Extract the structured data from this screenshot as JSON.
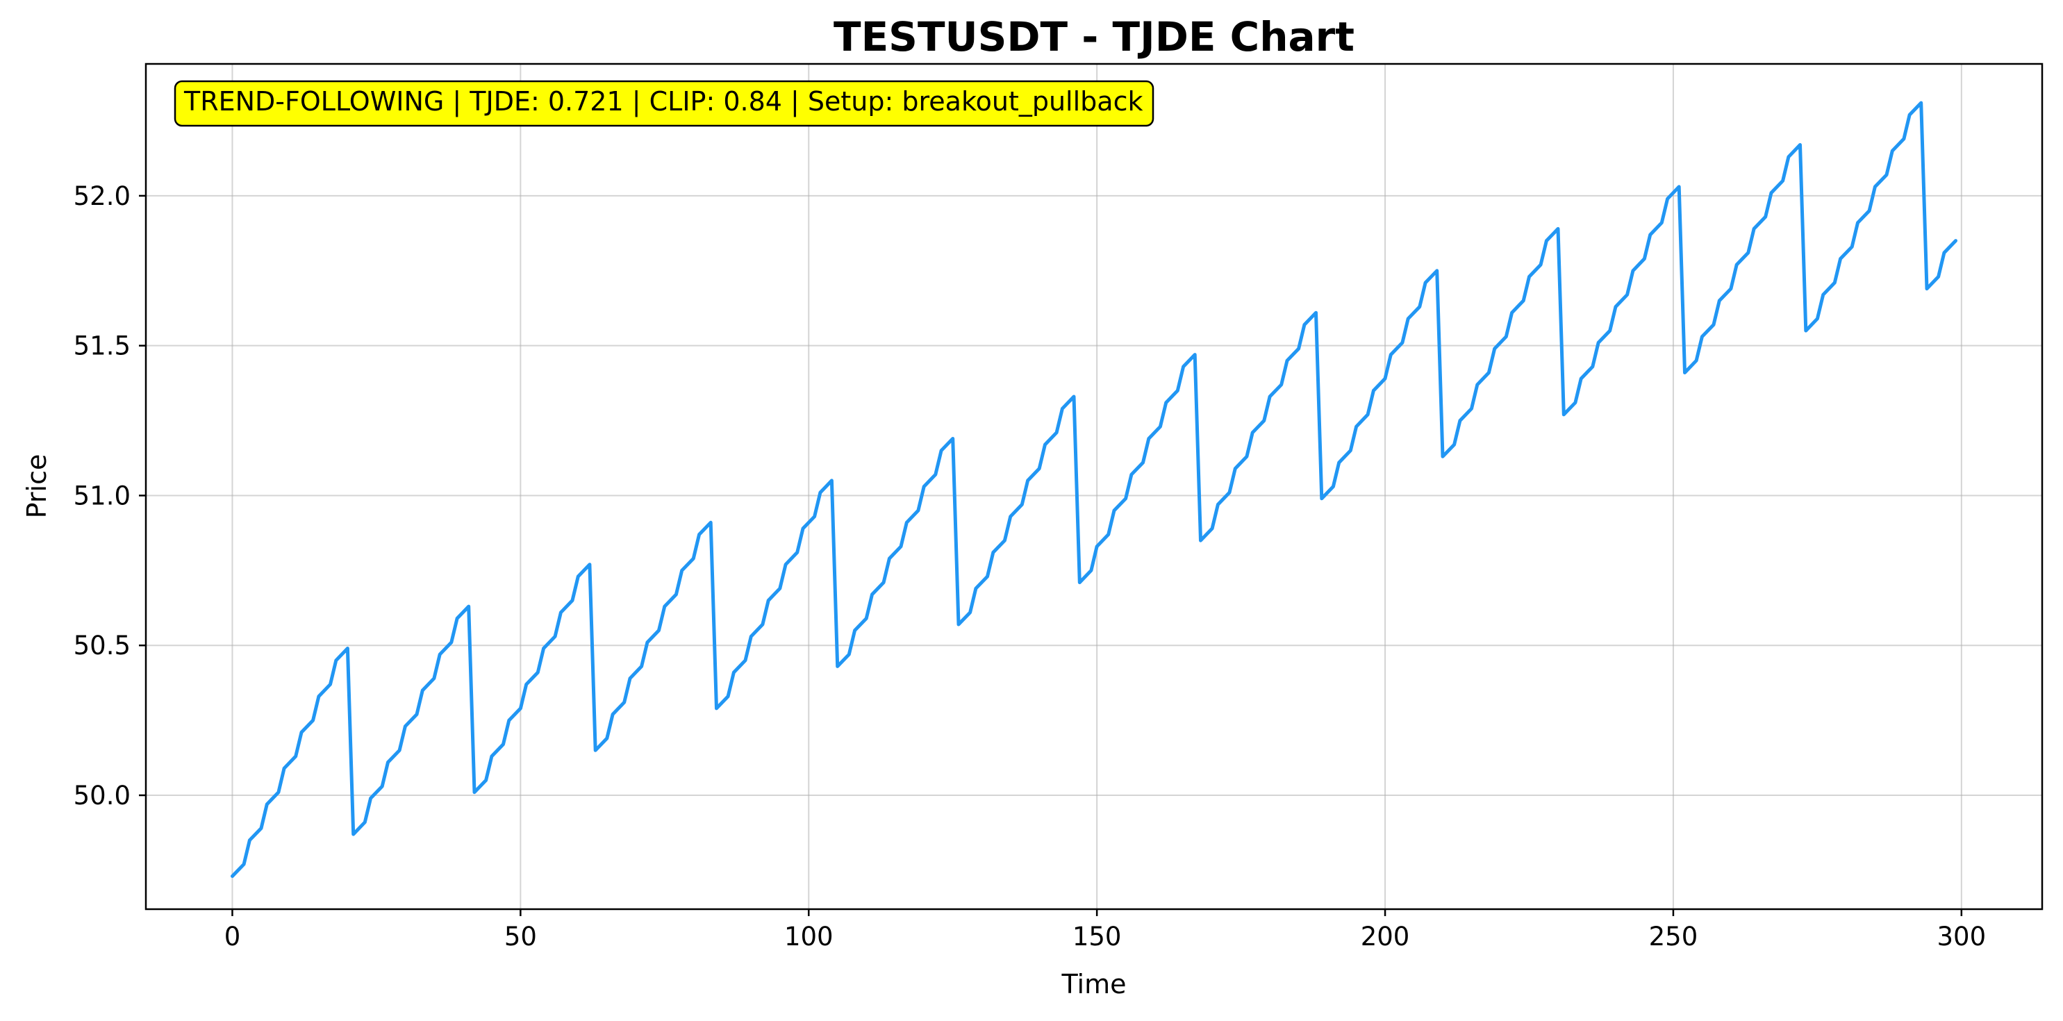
{
  "chart_data": {
    "type": "line",
    "title": "TESTUSDT - TJDE Chart",
    "xlabel": "Time",
    "ylabel": "Price",
    "xlim": [
      -15,
      314
    ],
    "ylim": [
      49.62,
      52.44
    ],
    "xticks": [
      0,
      50,
      100,
      150,
      200,
      250,
      300
    ],
    "yticks": [
      50.0,
      50.5,
      51.0,
      51.5,
      52.0
    ],
    "xtick_labels": [
      "0",
      "50",
      "100",
      "150",
      "200",
      "250",
      "300"
    ],
    "ytick_labels": [
      "50.0",
      "50.5",
      "51.0",
      "51.5",
      "52.0"
    ],
    "grid": true,
    "annotation": "TREND-FOLLOWING | TJDE: 0.721 | CLIP: 0.84 | Setup: breakout_pullback",
    "annotation_color": "#ffff00",
    "series": [
      {
        "color": "#2196f3",
        "x": [
          0,
          2,
          3,
          5,
          6,
          8,
          9,
          11,
          12,
          14,
          15,
          17,
          18,
          20,
          21,
          23,
          24,
          26,
          27,
          29,
          30,
          32,
          33,
          35,
          36,
          38,
          39,
          41,
          42,
          44,
          45,
          47,
          48,
          50,
          51,
          53,
          54,
          56,
          57,
          59,
          60,
          62,
          63,
          65,
          66,
          68,
          69,
          71,
          72,
          74,
          75,
          77,
          78,
          80,
          81,
          83,
          84,
          86,
          87,
          89,
          90,
          92,
          93,
          95,
          96,
          98,
          99,
          101,
          102,
          104,
          105,
          107,
          108,
          110,
          111,
          113,
          114,
          116,
          117,
          119,
          120,
          122,
          123,
          125,
          126,
          128,
          129,
          131,
          132,
          134,
          135,
          137,
          138,
          140,
          141,
          143,
          144,
          146,
          147,
          149,
          150,
          152,
          153,
          155,
          156,
          158,
          159,
          161,
          162,
          164,
          165,
          167,
          168,
          170,
          171,
          173,
          174,
          176,
          177,
          179,
          180,
          182,
          183,
          185,
          186,
          188,
          189,
          191,
          192,
          194,
          195,
          197,
          198,
          200,
          201,
          203,
          204,
          206,
          207,
          209,
          210,
          212,
          213,
          215,
          216,
          218,
          219,
          221,
          222,
          224,
          225,
          227,
          228,
          230,
          231,
          233,
          234,
          236,
          237,
          239,
          240,
          242,
          243,
          245,
          246,
          248,
          249,
          251,
          252,
          254,
          255,
          257,
          258,
          260,
          261,
          263,
          264,
          266,
          267,
          269,
          270,
          272,
          273,
          275,
          276,
          278,
          279,
          281,
          282,
          284,
          285,
          287,
          288,
          290,
          291,
          293,
          294,
          296,
          297,
          299
        ],
        "y": [
          49.73,
          49.77,
          49.85,
          49.89,
          49.97,
          50.01,
          50.09,
          50.13,
          50.21,
          50.25,
          50.33,
          50.37,
          50.45,
          50.49,
          49.87,
          49.91,
          49.99,
          50.03,
          50.11,
          50.15,
          50.23,
          50.27,
          50.35,
          50.39,
          50.47,
          50.51,
          50.59,
          50.63,
          50.01,
          50.05,
          50.13,
          50.17,
          50.25,
          50.29,
          50.37,
          50.41,
          50.49,
          50.53,
          50.61,
          50.65,
          50.73,
          50.77,
          50.15,
          50.19,
          50.27,
          50.31,
          50.39,
          50.43,
          50.51,
          50.55,
          50.63,
          50.67,
          50.75,
          50.79,
          50.87,
          50.91,
          50.29,
          50.33,
          50.41,
          50.45,
          50.53,
          50.57,
          50.65,
          50.69,
          50.77,
          50.81,
          50.89,
          50.93,
          51.01,
          51.05,
          50.43,
          50.47,
          50.55,
          50.59,
          50.67,
          50.71,
          50.79,
          50.83,
          50.91,
          50.95,
          51.03,
          51.07,
          51.15,
          51.19,
          50.57,
          50.61,
          50.69,
          50.73,
          50.81,
          50.85,
          50.93,
          50.97,
          51.05,
          51.09,
          51.17,
          51.21,
          51.29,
          51.33,
          50.71,
          50.75,
          50.83,
          50.87,
          50.95,
          50.99,
          51.07,
          51.11,
          51.19,
          51.23,
          51.31,
          51.35,
          51.43,
          51.47,
          50.85,
          50.89,
          50.97,
          51.01,
          51.09,
          51.13,
          51.21,
          51.25,
          51.33,
          51.37,
          51.45,
          51.49,
          51.57,
          51.61,
          50.99,
          51.03,
          51.11,
          51.15,
          51.23,
          51.27,
          51.35,
          51.39,
          51.47,
          51.51,
          51.59,
          51.63,
          51.71,
          51.75,
          51.13,
          51.17,
          51.25,
          51.29,
          51.37,
          51.41,
          51.49,
          51.53,
          51.61,
          51.65,
          51.73,
          51.77,
          51.85,
          51.89,
          51.27,
          51.31,
          51.39,
          51.43,
          51.51,
          51.55,
          51.63,
          51.67,
          51.75,
          51.79,
          51.87,
          51.91,
          51.99,
          52.03,
          51.41,
          51.45,
          51.53,
          51.57,
          51.65,
          51.69,
          51.77,
          51.81,
          51.89,
          51.93,
          52.01,
          52.05,
          52.13,
          52.17,
          51.55,
          51.59,
          51.67,
          51.71,
          51.79,
          51.83,
          51.91,
          51.95,
          52.03,
          52.07,
          52.15,
          52.19,
          52.27,
          52.31,
          51.69,
          51.73,
          51.81,
          51.85
        ]
      }
    ]
  }
}
